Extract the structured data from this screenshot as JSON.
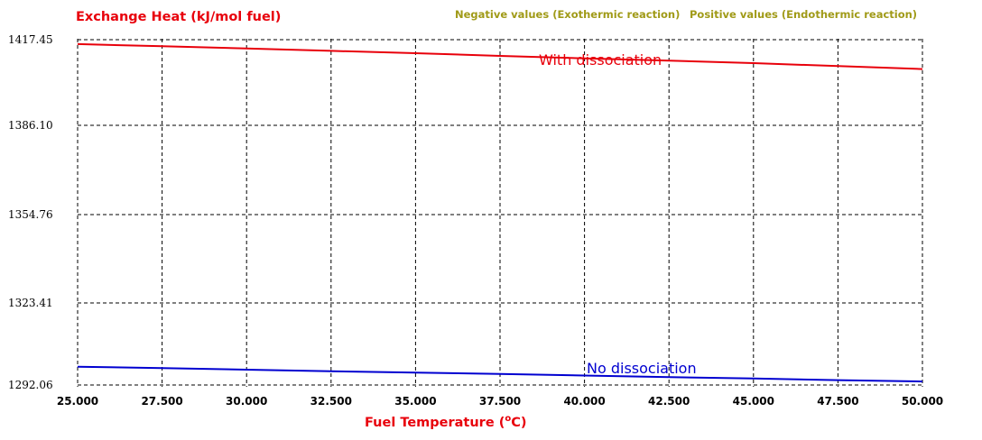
{
  "chart_data": {
    "type": "line",
    "ylabel": "Exchange Heat (kJ/mol fuel)",
    "xlabel": "Fuel Temperature (oC)",
    "xlabel_base": "Fuel Temperature (",
    "xlabel_sup": "o",
    "xlabel_tail": "C)",
    "notes": {
      "negative": "Negative values (Exothermic reaction)",
      "positive": "Positive values (Endothermic reaction)"
    },
    "xlim": [
      25.0,
      50.0
    ],
    "ylim": [
      1290.0,
      1420.0
    ],
    "x_ticks": [
      "25.000",
      "27.500",
      "30.000",
      "32.500",
      "35.000",
      "37.500",
      "40.000",
      "42.500",
      "45.000",
      "47.500",
      "50.000"
    ],
    "y_ticks": [
      "1417.45",
      "1386.10",
      "1354.76",
      "1323.41",
      "1292.06"
    ],
    "series": [
      {
        "name": "With dissociation",
        "color": "#e8000b",
        "x": [
          25.0,
          27.5,
          30.0,
          32.5,
          35.0,
          37.5,
          40.0,
          42.5,
          45.0,
          47.5,
          50.0
        ],
        "y": [
          1418.0,
          1417.2,
          1416.4,
          1415.5,
          1414.6,
          1413.6,
          1412.7,
          1411.8,
          1410.9,
          1409.8,
          1408.7
        ]
      },
      {
        "name": "No dissociation",
        "color": "#0000d0",
        "x": [
          25.0,
          27.5,
          30.0,
          32.5,
          35.0,
          37.5,
          40.0,
          42.5,
          45.0,
          47.5,
          50.0
        ],
        "y": [
          1297.5,
          1297.0,
          1296.4,
          1295.8,
          1295.3,
          1294.8,
          1294.2,
          1293.6,
          1293.1,
          1292.5,
          1292.0
        ]
      }
    ],
    "colors": {
      "axis_label": "#e8000b",
      "notes": "#a09a17",
      "grid": "#000000"
    }
  }
}
